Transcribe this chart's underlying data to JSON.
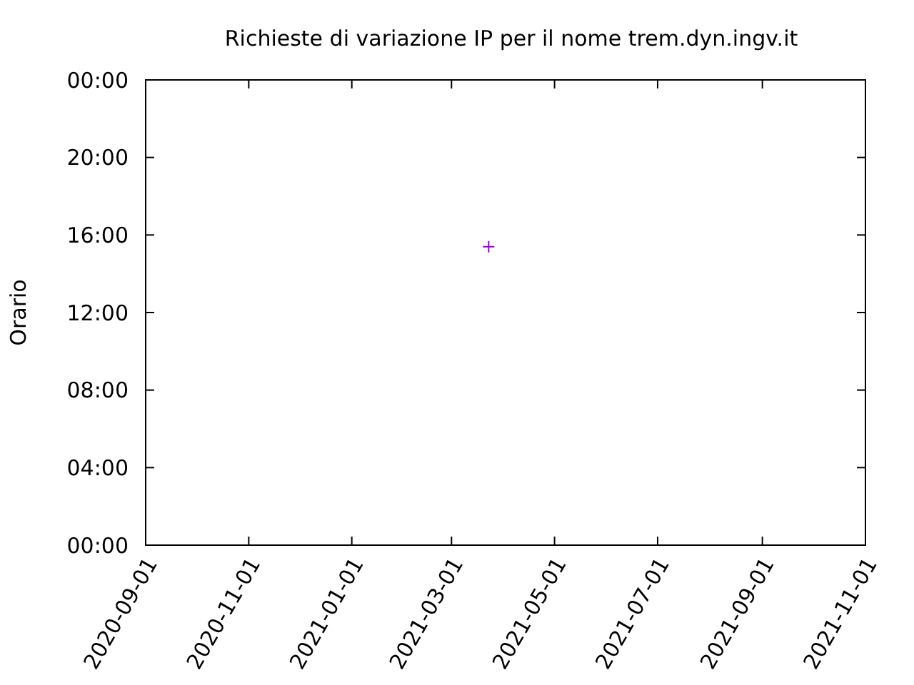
{
  "chart_data": {
    "type": "scatter",
    "title": "Richieste di variazione IP per il nome trem.dyn.ingv.it",
    "ylabel": "Orario",
    "x": [
      "2021-03-23"
    ],
    "series": [
      {
        "color": "#9400d3",
        "values": [
          15.4
        ]
      }
    ],
    "xlim": [
      "2020-09-01",
      "2021-11-01"
    ],
    "xticks": [
      "2020-09-01",
      "2020-11-01",
      "2021-01-01",
      "2021-03-01",
      "2021-05-01",
      "2021-07-01",
      "2021-09-01",
      "2021-11-01"
    ],
    "ylim": [
      0,
      24
    ],
    "yticks": [
      {
        "value": 0,
        "label": "00:00"
      },
      {
        "value": 4,
        "label": "04:00"
      },
      {
        "value": 8,
        "label": "08:00"
      },
      {
        "value": 12,
        "label": "12:00"
      },
      {
        "value": 16,
        "label": "16:00"
      },
      {
        "value": 20,
        "label": "20:00"
      },
      {
        "value": 24,
        "label": "00:00"
      }
    ],
    "marker": "cross",
    "grid": false
  }
}
